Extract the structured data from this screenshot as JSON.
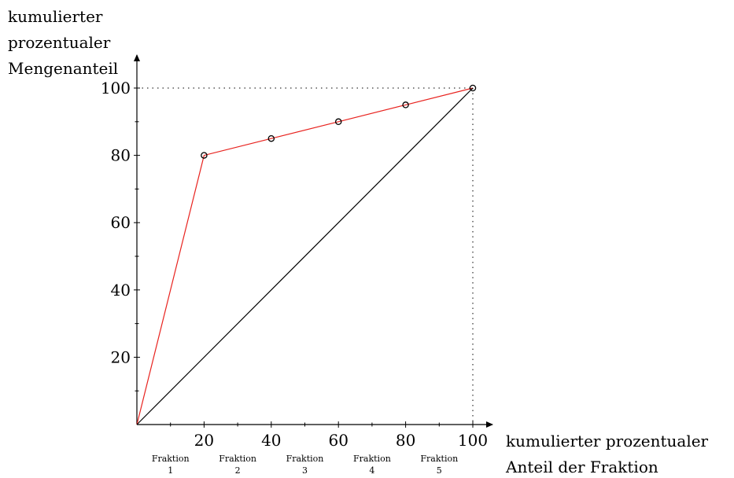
{
  "chart_data": {
    "type": "line",
    "ylabel_lines": [
      "kumulierter",
      "prozentualer",
      "Mengenanteil"
    ],
    "xlabel_lines": [
      "kumulierter prozentualer",
      "Anteil der Fraktion"
    ],
    "xlim": [
      0,
      100
    ],
    "ylim": [
      0,
      100
    ],
    "x_ticks": [
      20,
      40,
      60,
      80,
      100
    ],
    "y_ticks": [
      20,
      40,
      60,
      80,
      100
    ],
    "fractions": [
      {
        "name": "Fraktion",
        "number": "1",
        "x": 10
      },
      {
        "name": "Fraktion",
        "number": "2",
        "x": 30
      },
      {
        "name": "Fraktion",
        "number": "3",
        "x": 50
      },
      {
        "name": "Fraktion",
        "number": "4",
        "x": 70
      },
      {
        "name": "Fraktion",
        "number": "5",
        "x": 90
      }
    ],
    "series": [
      {
        "color": "#e8231f",
        "markers": true,
        "points": [
          [
            0,
            0
          ],
          [
            20,
            80
          ],
          [
            40,
            85
          ],
          [
            60,
            90
          ],
          [
            80,
            95
          ],
          [
            100,
            100
          ]
        ]
      },
      {
        "color": "#000000",
        "markers": false,
        "points": [
          [
            0,
            0
          ],
          [
            100,
            100
          ]
        ]
      }
    ],
    "reference_lines": "dotted from (100,100) to both axes"
  }
}
